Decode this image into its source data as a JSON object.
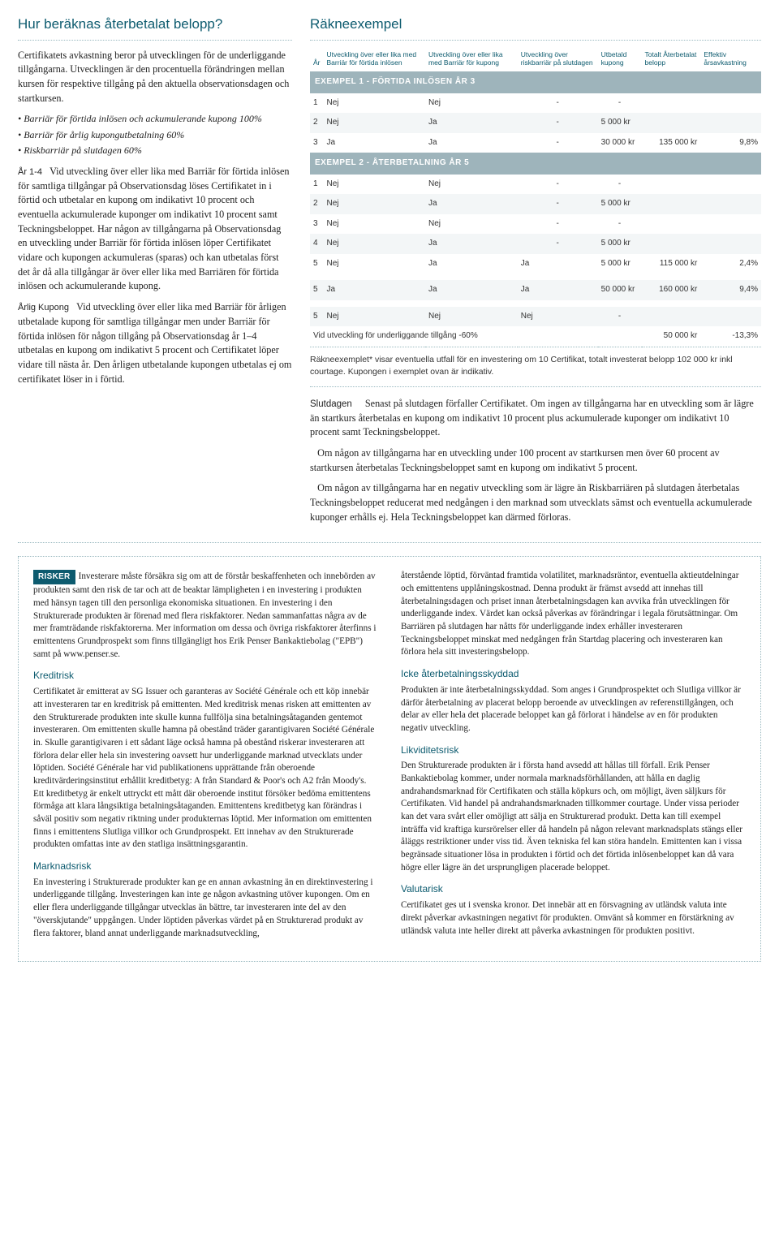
{
  "left": {
    "heading": "Hur beräknas återbetalat belopp?",
    "intro": "Certifikatets avkastning beror på utvecklingen för de underliggande tillgångarna. Utvecklingen är den procentuella förändringen mellan kursen för respektive tillgång på den aktuella observationsdagen och startkursen.",
    "bullets": [
      "Barriär för förtida inlösen och ackumulerande kupong 100%",
      "Barriär för årlig kupongutbetalning 60%",
      "Riskbarriär på slutdagen 60%"
    ],
    "para_ar_lead": "År 1-4",
    "para_ar": "Vid utveckling över eller lika med Barriär för förtida inlösen för samtliga tillgångar på Observationsdag löses Certifikatet in i förtid och utbetalar en kupong om indikativt 10 procent och eventuella ackumulerade kuponger om indikativt 10 procent samt Teckningsbeloppet. Har någon av tillgångarna på Observationsdag en utveckling under Barriär för förtida inlösen löper Certifikatet vidare och kupongen ackumuleras (sparas) och kan utbetalas först det år då alla tillgångar är över eller lika med Barriären för förtida inlösen och ackumulerande kupong.",
    "para_kup_lead": "Årlig Kupong",
    "para_kup": "Vid utveckling över eller lika med Barriär för årligen utbetalade kupong för samtliga tillgångar men under Barriär för förtida inlösen för någon tillgång på Observationsdag år 1–4 utbetalas en kupong om indikativt 5 procent och Certifikatet löper vidare till nästa år. Den årligen utbetalande kupongen utbetalas ej om certifikatet löser in i förtid."
  },
  "table": {
    "heading": "Räkneexempel",
    "columns": [
      "År",
      "Utveckling över eller lika med Barriär för förtida inlösen",
      "Utveckling över eller lika med Barriär för kupong",
      "Utveckling över riskbarriär på slutdagen",
      "Utbetald kupong",
      "Totalt Återbetalat belopp",
      "Effektiv årsavkastning"
    ],
    "band1": "EXEMPEL 1 - FÖRTIDA INLÖSEN ÅR 3",
    "rows1": [
      [
        "1",
        "Nej",
        "Nej",
        "-",
        "-",
        "",
        ""
      ],
      [
        "2",
        "Nej",
        "Ja",
        "-",
        "5 000 kr",
        "",
        ""
      ],
      [
        "3",
        "Ja",
        "Ja",
        "-",
        "30 000 kr",
        "135 000 kr",
        "9,8%"
      ]
    ],
    "band2": "EXEMPEL 2 - ÅTERBETALNING ÅR 5",
    "rows2": [
      [
        "1",
        "Nej",
        "Nej",
        "-",
        "-",
        "",
        ""
      ],
      [
        "2",
        "Nej",
        "Ja",
        "-",
        "5 000 kr",
        "",
        ""
      ],
      [
        "3",
        "Nej",
        "Nej",
        "-",
        "-",
        "",
        ""
      ],
      [
        "4",
        "Nej",
        "Ja",
        "-",
        "5 000 kr",
        "",
        ""
      ],
      [
        "5",
        "Nej",
        "Ja",
        "Ja",
        "5 000 kr",
        "115 000 kr",
        "2,4%"
      ]
    ],
    "rows3": [
      [
        "5",
        "Ja",
        "Ja",
        "Ja",
        "50 000 kr",
        "160 000 kr",
        "9,4%"
      ]
    ],
    "rows4": [
      [
        "5",
        "Nej",
        "Nej",
        "Nej",
        "-",
        "",
        ""
      ]
    ],
    "footrow": [
      "Vid utveckling för underliggande tillgång -60%",
      "50 000 kr",
      "-13,3%"
    ],
    "note": "Räkneexemplet* visar eventuella utfall för en investering om 10 Certifikat, totalt investerat belopp 102 000 kr inkl courtage. Kupongen i exemplet ovan är indikativ."
  },
  "slut": {
    "lead": "Slutdagen",
    "p1": "Senast på slutdagen förfaller Certifikatet. Om ingen av tillgångarna har en utveckling som är lägre än startkurs återbetalas en kupong om indikativt 10 procent plus ackumulerade kuponger om indikativt 10 procent samt Teckningsbeloppet.",
    "p2": "Om någon av tillgångarna har en utveckling under 100 procent av startkursen men över 60 procent av startkursen återbetalas Teckningsbeloppet samt en kupong om indikativt 5 procent.",
    "p3": "Om någon av tillgångarna har en negativ utveckling som är lägre än Riskbarriären på slutdagen återbetalas Teckningsbeloppet reducerat med nedgången i den marknad som utvecklats sämst och eventuella ackumulerade kuponger erhålls ej. Hela Teckningsbeloppet kan därmed förloras."
  },
  "risks": {
    "tag": "RISKER",
    "intro": "Investerare måste försäkra sig om att de förstår beskaffenheten och innebörden av produkten samt den risk de tar och att de beaktar lämpligheten i en investering i produkten med hänsyn tagen till den personliga ekonomiska situationen. En investering i den Strukturerade produkten är förenad med flera riskfaktorer. Nedan sammanfattas några av de mer framträdande riskfaktorerna. Mer information om dessa och övriga riskfaktorer återfinns i emittentens Grundprospekt som finns tillgängligt hos Erik Penser Bankaktiebolag (\"EPB\") samt på www.penser.se.",
    "left": [
      {
        "h": "Kreditrisk",
        "p": "Certifikatet är emitterat av SG Issuer och garanteras av Société Générale och ett köp innebär att investeraren tar en kreditrisk på emittenten. Med kreditrisk menas risken att emittenten av den Strukturerade produkten inte skulle kunna fullfölja sina betalningsåtaganden gentemot investeraren. Om emittenten skulle hamna på obestånd träder garantigivaren Société Générale in. Skulle garantigivaren i ett sådant läge också hamna på obestånd riskerar investeraren att förlora delar eller hela sin investering oavsett hur underliggande marknad utvecklats under löptiden. Société Générale har vid publikationens upprättande från oberoende kreditvärderingsinstitut erhållit kreditbetyg: A från Standard & Poor's och A2 från Moody's. Ett kreditbetyg är enkelt uttryckt ett mått där oberoende institut försöker bedöma emittentens förmåga att klara långsiktiga betalningsåtaganden. Emittentens kreditbetyg kan förändras i såväl positiv som negativ riktning under produkternas löptid. Mer information om emittenten finns i emittentens Slutliga villkor och Grundprospekt. Ett innehav av den Strukturerade produkten omfattas inte av den statliga insättningsgarantin."
      },
      {
        "h": "Marknadsrisk",
        "p": "En investering i Strukturerade produkter kan ge en annan avkastning än en direktinvestering i underliggande tillgång. Investeringen kan inte ge någon avkastning utöver kupongen. Om en eller flera underliggande tillgångar utvecklas än bättre, tar investeraren inte del av den \"överskjutande\" uppgången. Under löptiden påverkas värdet på en Strukturerad produkt av flera faktorer, bland annat underliggande marknadsutveckling,"
      }
    ],
    "right": [
      {
        "h": "",
        "p": "återstående löptid, förväntad framtida volatilitet, marknadsräntor, eventuella aktieutdelningar och emittentens upplåningskostnad. Denna produkt är främst avsedd att innehas till återbetalningsdagen och priset innan återbetalningsdagen kan avvika från utvecklingen för underliggande index. Värdet kan också påverkas av förändringar i legala förutsättningar. Om Barriären på slutdagen har nåtts för underliggande index erhåller investeraren Teckningsbeloppet minskat med nedgången från Startdag placering och investeraren kan förlora hela sitt investeringsbelopp."
      },
      {
        "h": "Icke återbetalningsskyddad",
        "p": "Produkten är inte återbetalningsskyddad. Som anges i Grundprospektet och Slutliga villkor är därför återbetalning av placerat belopp beroende av utvecklingen av referenstillgången, och delar av eller hela det placerade beloppet kan gå förlorat i händelse av en för produkten negativ utveckling."
      },
      {
        "h": "Likviditetsrisk",
        "p": "Den Strukturerade produkten är i första hand avsedd att hållas till förfall. Erik Penser Bankaktiebolag kommer, under normala marknadsförhållanden, att hålla en daglig andrahandsmarknad för Certifikaten och ställa köpkurs och, om möjligt, även säljkurs för Certifikaten. Vid handel på andrahandsmarknaden tillkommer courtage. Under vissa perioder kan det vara svårt eller omöjligt att sälja en Strukturerad produkt. Detta kan till exempel inträffa vid kraftiga kursrörelser eller då handeln på någon relevant marknadsplats stängs eller åläggs restriktioner under viss tid. Även tekniska fel kan störa handeln. Emittenten kan i vissa begränsade situationer lösa in produkten i förtid och det förtida inlösenbeloppet kan då vara högre eller lägre än det ursprungligen placerade beloppet."
      },
      {
        "h": "Valutarisk",
        "p": "Certifikatet ges ut i svenska kronor. Det innebär att en försvagning av utländsk valuta inte direkt påverkar avkastningen negativt för produkten. Omvänt så kommer en förstärkning av utländsk valuta inte heller direkt att påverka avkastningen för produkten positivt."
      }
    ]
  },
  "colors": {
    "accent": "#0d5b6f",
    "band": "#9eb4bb",
    "row_alt": "#f3f6f7",
    "dotted": "#9ab9c0"
  }
}
